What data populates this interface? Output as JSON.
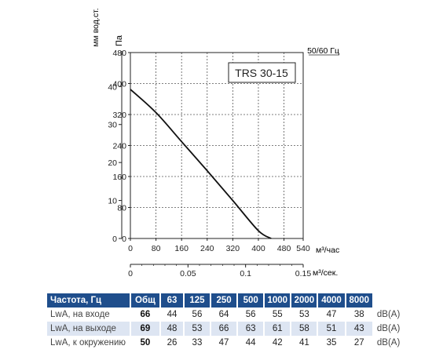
{
  "chart_data": {
    "type": "line",
    "title": "TRS 30-15",
    "freq_label": "50/60 Гц",
    "y_left_label": "мм вод.ст.",
    "y_right_label": "Па",
    "x_label_top": "м³/час",
    "x_label_bottom": "м³/сек.",
    "y_pa_ticks": [
      "0",
      "80",
      "160",
      "240",
      "320",
      "400",
      "480"
    ],
    "y_mm_ticks": [
      "0",
      "10",
      "20",
      "30",
      "40"
    ],
    "x_m3h_ticks": [
      "0",
      "80",
      "160",
      "240",
      "320",
      "400",
      "480",
      "540"
    ],
    "x_m3s_ticks": [
      "0",
      "0.05",
      "0.1",
      "0.15"
    ],
    "x_m3s_values": [
      0,
      0.05,
      0.1,
      0.15
    ],
    "y_mm_values": [
      0,
      10,
      20,
      30,
      40
    ],
    "xlim": [
      0,
      540
    ],
    "ylim": [
      0,
      480
    ],
    "grid": true,
    "series": [
      {
        "x": [
          0,
          80,
          160,
          240,
          320,
          400,
          440
        ],
        "y": [
          385,
          325,
          250,
          175,
          98,
          20,
          0
        ]
      }
    ]
  },
  "table": {
    "headers": [
      "Частота, Гц",
      "Общ",
      "63",
      "125",
      "250",
      "500",
      "1000",
      "2000",
      "4000",
      "8000"
    ],
    "rows": [
      {
        "label": "LwA, на входе",
        "values": [
          "66",
          "44",
          "56",
          "64",
          "56",
          "55",
          "53",
          "47",
          "38"
        ],
        "unit": "dB(A)"
      },
      {
        "label": "LwA, на выходе",
        "values": [
          "69",
          "48",
          "53",
          "66",
          "63",
          "61",
          "58",
          "51",
          "43"
        ],
        "unit": "dB(A)"
      },
      {
        "label": "LwA, к окружению",
        "values": [
          "50",
          "26",
          "33",
          "47",
          "44",
          "42",
          "41",
          "35",
          "27"
        ],
        "unit": "dB(A)"
      }
    ]
  }
}
